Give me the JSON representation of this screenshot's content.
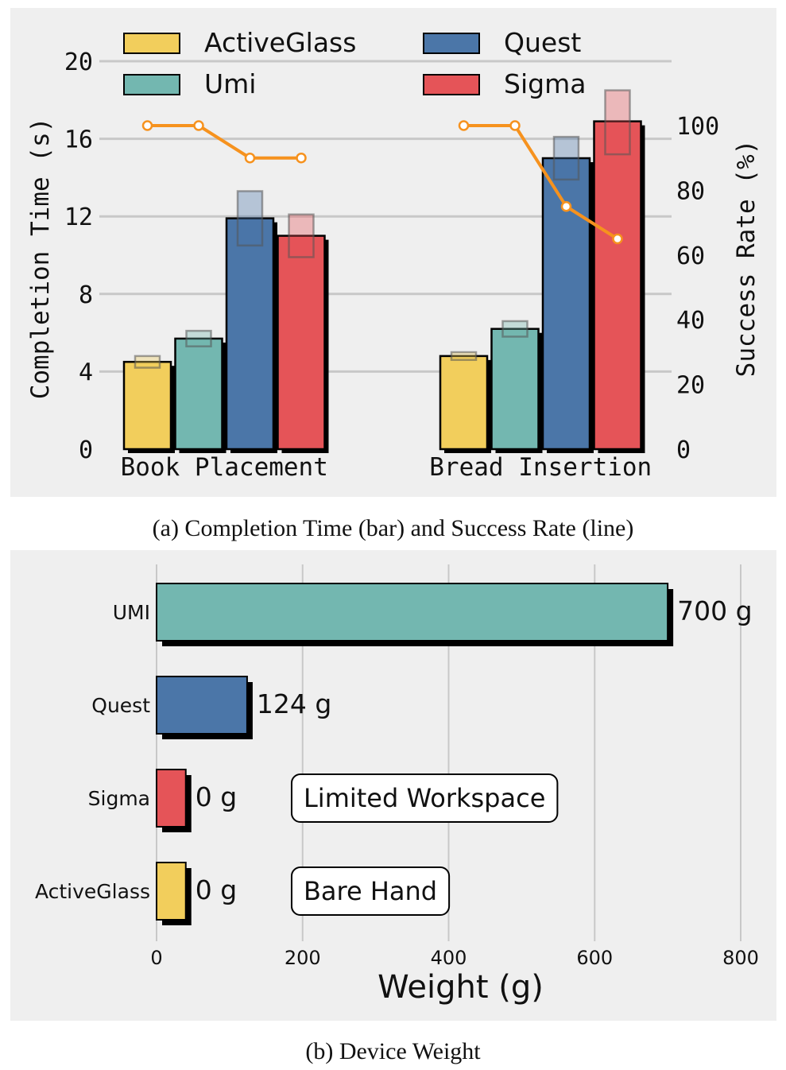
{
  "chart_data": [
    {
      "type": "bar",
      "title": "",
      "caption": "(a) Completion Time (bar) and Success Rate (line)",
      "categories": [
        "Book Placement",
        "Bread Insertion"
      ],
      "ylabel": "Completion Time (s)",
      "ylim": [
        0,
        20
      ],
      "yticks": [
        "0",
        "4",
        "8",
        "12",
        "16",
        "20"
      ],
      "y2label": "Success Rate (%)",
      "y2lim": [
        0,
        100
      ],
      "y2ticks": [
        "0",
        "20",
        "40",
        "60",
        "80",
        "100"
      ],
      "grid": true,
      "legend_position": "top",
      "series": [
        {
          "name": "ActiveGlass",
          "color": "#f2ce5c",
          "values": [
            4.5,
            4.8
          ],
          "error_range": [
            [
              4.2,
              4.8
            ],
            [
              4.6,
              5.0
            ]
          ],
          "success_rate": [
            100,
            100
          ]
        },
        {
          "name": "Umi",
          "color": "#73b7b0",
          "values": [
            5.7,
            6.2
          ],
          "error_range": [
            [
              5.3,
              6.1
            ],
            [
              5.8,
              6.6
            ]
          ],
          "success_rate": [
            100,
            100
          ]
        },
        {
          "name": "Quest",
          "color": "#4b76a8",
          "values": [
            11.9,
            15.0
          ],
          "error_range": [
            [
              10.5,
              13.3
            ],
            [
              13.9,
              16.1
            ]
          ],
          "success_rate": [
            90,
            75
          ]
        },
        {
          "name": "Sigma",
          "color": "#e55458",
          "values": [
            11.0,
            16.9
          ],
          "error_range": [
            [
              9.9,
              12.1
            ],
            [
              15.2,
              18.5
            ]
          ],
          "success_rate": [
            90,
            65
          ]
        }
      ],
      "line_color": "#f6921e"
    },
    {
      "type": "bar",
      "orientation": "horizontal",
      "title": "",
      "caption": "(b) Device Weight",
      "categories": [
        "UMI",
        "Quest",
        "Sigma",
        "ActiveGlass"
      ],
      "values": [
        700,
        124,
        0,
        0
      ],
      "bar_lengths": [
        700,
        124,
        40,
        40
      ],
      "value_labels": [
        "700 g",
        "124 g",
        "0 g",
        "0 g"
      ],
      "colors": [
        "#73b7b0",
        "#4b76a8",
        "#e55458",
        "#f2ce5c"
      ],
      "annotations": [
        {
          "category": "Sigma",
          "text": "Limited Workspace",
          "x": 185
        },
        {
          "category": "ActiveGlass",
          "text": "Bare Hand",
          "x": 185
        }
      ],
      "xlabel": "Weight (g)",
      "xlim": [
        0,
        800
      ],
      "xticks": [
        "0",
        "200",
        "400",
        "600",
        "800"
      ],
      "grid": true
    }
  ]
}
